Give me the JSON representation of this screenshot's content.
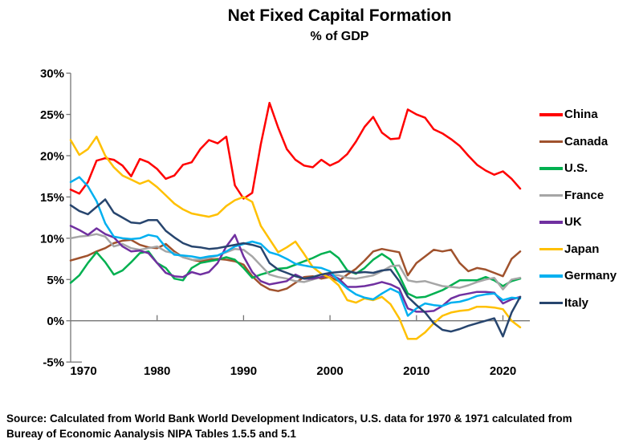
{
  "header": {
    "title": "Net Fixed Capital Formation",
    "subtitle": "% of GDP"
  },
  "source": {
    "line1": "Source:  Calculated from World Bank World Development Indicators, U.S. data for 1970 & 1971 calculated from",
    "line2": "Bureay of Economic Aanalysis NIPA Tables 1.5.5 and 5.1"
  },
  "chart_data": {
    "type": "line",
    "title": "Net Fixed Capital Formation",
    "subtitle": "% of GDP",
    "xlabel": "",
    "ylabel": "",
    "x_start_year": 1970,
    "x_end_year": 2022,
    "xlim": [
      1970,
      2023
    ],
    "ylim": [
      -5,
      30
    ],
    "grid": "zero-line-only",
    "legend_position": "right",
    "axis_color": "#757575",
    "y_ticks": [
      {
        "v": 30,
        "label": "30%"
      },
      {
        "v": 25,
        "label": "25%"
      },
      {
        "v": 20,
        "label": "20%"
      },
      {
        "v": 15,
        "label": "15%"
      },
      {
        "v": 10,
        "label": "10%"
      },
      {
        "v": 5,
        "label": "5%"
      },
      {
        "v": 0,
        "label": "0%"
      },
      {
        "v": -5,
        "label": "-5%"
      }
    ],
    "x_ticks": [
      {
        "year": 1970,
        "label": "1970"
      },
      {
        "year": 1980,
        "label": "1980"
      },
      {
        "year": 1990,
        "label": "1990"
      },
      {
        "year": 2000,
        "label": "2000"
      },
      {
        "year": 2010,
        "label": "2010"
      },
      {
        "year": 2020,
        "label": "2020"
      }
    ],
    "series": [
      {
        "name": "China",
        "color": "#FF0000",
        "values": [
          15.9,
          15.4,
          16.8,
          19.4,
          19.7,
          19.5,
          18.8,
          17.5,
          19.6,
          19.2,
          18.4,
          17.2,
          17.6,
          18.9,
          19.2,
          20.8,
          21.9,
          21.5,
          22.3,
          16.4,
          14.8,
          15.5,
          21.4,
          26.4,
          23.4,
          20.8,
          19.5,
          18.8,
          18.6,
          19.5,
          18.8,
          19.3,
          20.2,
          21.7,
          23.5,
          24.7,
          22.8,
          22.0,
          22.1,
          25.6,
          25.0,
          24.6,
          23.2,
          22.7,
          22.0,
          21.2,
          20.0,
          18.9,
          18.2,
          17.7,
          18.1,
          17.2,
          16.0
        ]
      },
      {
        "name": "Canada",
        "color": "#A0522D",
        "values": [
          7.3,
          7.6,
          7.9,
          8.4,
          8.8,
          9.4,
          9.7,
          9.8,
          9.2,
          8.9,
          8.8,
          9.3,
          8.4,
          7.7,
          7.4,
          7.2,
          7.4,
          7.5,
          7.4,
          7.2,
          6.8,
          5.4,
          4.4,
          3.8,
          3.6,
          3.9,
          4.6,
          5.3,
          5.4,
          5.1,
          5.3,
          4.8,
          5.6,
          6.3,
          7.3,
          8.4,
          8.7,
          8.5,
          8.3,
          5.5,
          7.0,
          7.8,
          8.6,
          8.4,
          8.6,
          7.0,
          6.0,
          6.4,
          6.2,
          5.8,
          5.4,
          7.5,
          8.4
        ]
      },
      {
        "name": "U.S.",
        "color": "#00B050",
        "values": [
          4.6,
          5.5,
          7.0,
          8.3,
          7.1,
          5.6,
          6.1,
          7.1,
          8.2,
          8.4,
          7.0,
          6.4,
          5.1,
          4.9,
          6.4,
          7.0,
          7.2,
          7.4,
          7.7,
          7.4,
          6.4,
          5.2,
          5.6,
          5.9,
          6.3,
          6.4,
          6.8,
          7.2,
          7.6,
          8.1,
          8.4,
          7.6,
          6.1,
          5.7,
          6.4,
          7.4,
          8.1,
          7.4,
          5.5,
          3.3,
          2.8,
          2.9,
          3.3,
          3.7,
          4.3,
          4.9,
          4.9,
          4.9,
          5.3,
          4.9,
          4.2,
          4.8,
          5.1
        ]
      },
      {
        "name": "France",
        "color": "#A6A6A6",
        "values": [
          10.0,
          10.2,
          10.3,
          10.5,
          10.2,
          9.0,
          9.3,
          8.8,
          8.6,
          8.8,
          9.0,
          8.4,
          8.2,
          7.7,
          7.4,
          7.4,
          7.6,
          7.9,
          8.3,
          8.7,
          8.6,
          7.8,
          6.7,
          5.6,
          5.3,
          5.1,
          4.8,
          4.7,
          5.0,
          5.3,
          5.6,
          5.5,
          5.2,
          5.1,
          5.3,
          5.5,
          6.0,
          6.6,
          6.7,
          4.9,
          4.7,
          4.8,
          4.5,
          4.2,
          4.1,
          4.0,
          4.3,
          4.7,
          5.0,
          5.2,
          3.8,
          5.0,
          5.2
        ]
      },
      {
        "name": "UK",
        "color": "#7030A0",
        "values": [
          11.5,
          11.0,
          10.4,
          11.2,
          10.5,
          10.1,
          9.0,
          8.4,
          8.5,
          8.2,
          7.0,
          5.8,
          5.4,
          5.3,
          5.9,
          5.6,
          5.9,
          7.0,
          9.0,
          10.4,
          7.8,
          5.9,
          4.8,
          4.4,
          4.6,
          4.8,
          5.6,
          5.1,
          5.1,
          5.3,
          5.6,
          5.1,
          4.1,
          4.1,
          4.2,
          4.4,
          4.7,
          4.4,
          3.9,
          1.5,
          1.1,
          1.1,
          1.2,
          1.8,
          2.7,
          3.1,
          3.3,
          3.5,
          3.5,
          3.4,
          2.1,
          2.6,
          2.9
        ]
      },
      {
        "name": "Japan",
        "color": "#FFC000",
        "values": [
          21.9,
          20.1,
          20.8,
          22.3,
          20.0,
          18.6,
          17.6,
          17.1,
          16.6,
          17.0,
          16.2,
          15.2,
          14.2,
          13.5,
          13.0,
          12.8,
          12.6,
          12.9,
          13.9,
          14.6,
          15.0,
          14.4,
          11.5,
          9.9,
          8.3,
          8.9,
          9.6,
          8.1,
          6.5,
          5.7,
          5.2,
          4.3,
          2.5,
          2.2,
          2.7,
          2.5,
          2.9,
          2.0,
          0.3,
          -2.2,
          -2.2,
          -1.4,
          -0.3,
          0.6,
          1.0,
          1.2,
          1.3,
          1.7,
          1.7,
          1.6,
          1.4,
          0.0,
          -0.8
        ]
      },
      {
        "name": "Germany",
        "color": "#00B0F0",
        "values": [
          16.8,
          17.4,
          16.3,
          14.5,
          11.8,
          10.2,
          10.0,
          9.9,
          10.0,
          10.4,
          10.2,
          8.9,
          8.0,
          7.9,
          7.8,
          7.6,
          7.8,
          7.9,
          8.4,
          9.0,
          9.3,
          9.6,
          9.3,
          8.3,
          8.0,
          7.5,
          6.9,
          6.7,
          6.5,
          6.4,
          6.0,
          4.8,
          3.9,
          3.2,
          2.8,
          2.6,
          3.3,
          3.9,
          3.4,
          0.6,
          1.5,
          2.1,
          1.9,
          1.8,
          2.2,
          2.3,
          2.6,
          3.0,
          3.2,
          3.3,
          2.5,
          2.8,
          2.7
        ]
      },
      {
        "name": "Italy",
        "color": "#27456E",
        "values": [
          14.0,
          13.3,
          12.9,
          13.8,
          14.7,
          13.1,
          12.5,
          11.9,
          11.8,
          12.2,
          12.2,
          10.9,
          10.1,
          9.4,
          9.0,
          8.9,
          8.7,
          8.8,
          9.0,
          9.2,
          9.4,
          9.2,
          8.9,
          7.0,
          6.2,
          5.8,
          5.4,
          5.1,
          5.3,
          5.6,
          5.8,
          5.9,
          6.0,
          5.8,
          5.9,
          5.8,
          6.1,
          6.2,
          4.8,
          2.9,
          1.9,
          1.0,
          -0.3,
          -1.1,
          -1.3,
          -1.0,
          -0.6,
          -0.3,
          0.0,
          0.3,
          -1.9,
          1.0,
          2.9
        ]
      }
    ]
  }
}
